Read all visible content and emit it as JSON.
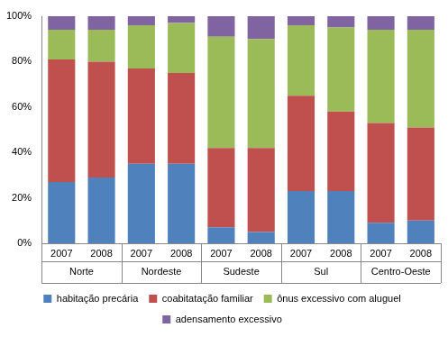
{
  "chart_data": {
    "type": "bar",
    "stacked": true,
    "grid": false,
    "legend": "bottom",
    "categories": [
      "2007",
      "2008",
      "2007",
      "2008",
      "2007",
      "2008",
      "2007",
      "2008",
      "2007",
      "2008"
    ],
    "groups": [
      "Norte",
      "Nordeste",
      "Sudeste",
      "Sul",
      "Centro-Oeste"
    ],
    "series": [
      {
        "name": "habitação precária",
        "color": "#4f81bd",
        "values": [
          27,
          29,
          35,
          35,
          7,
          5,
          23,
          23,
          9,
          10
        ]
      },
      {
        "name": "coabitatação familiar",
        "color": "#c0504d",
        "values": [
          54,
          51,
          42,
          40,
          35,
          37,
          42,
          35,
          44,
          41
        ]
      },
      {
        "name": "ônus excessivo com aluguel",
        "color": "#9bbb59",
        "values": [
          13,
          14,
          19,
          22,
          49,
          48,
          31,
          37,
          41,
          43
        ]
      },
      {
        "name": "adensamento excessivo",
        "color": "#8064a2",
        "values": [
          6,
          6,
          4,
          3,
          9,
          10,
          4,
          5,
          6,
          6
        ]
      }
    ],
    "ylim": [
      0,
      100
    ],
    "yticks": [
      {
        "value": 0,
        "label": "0%"
      },
      {
        "value": 20,
        "label": "20%"
      },
      {
        "value": 40,
        "label": "40%"
      },
      {
        "value": 60,
        "label": "60%"
      },
      {
        "value": 80,
        "label": "80%"
      },
      {
        "value": 100,
        "label": "100%"
      }
    ]
  }
}
